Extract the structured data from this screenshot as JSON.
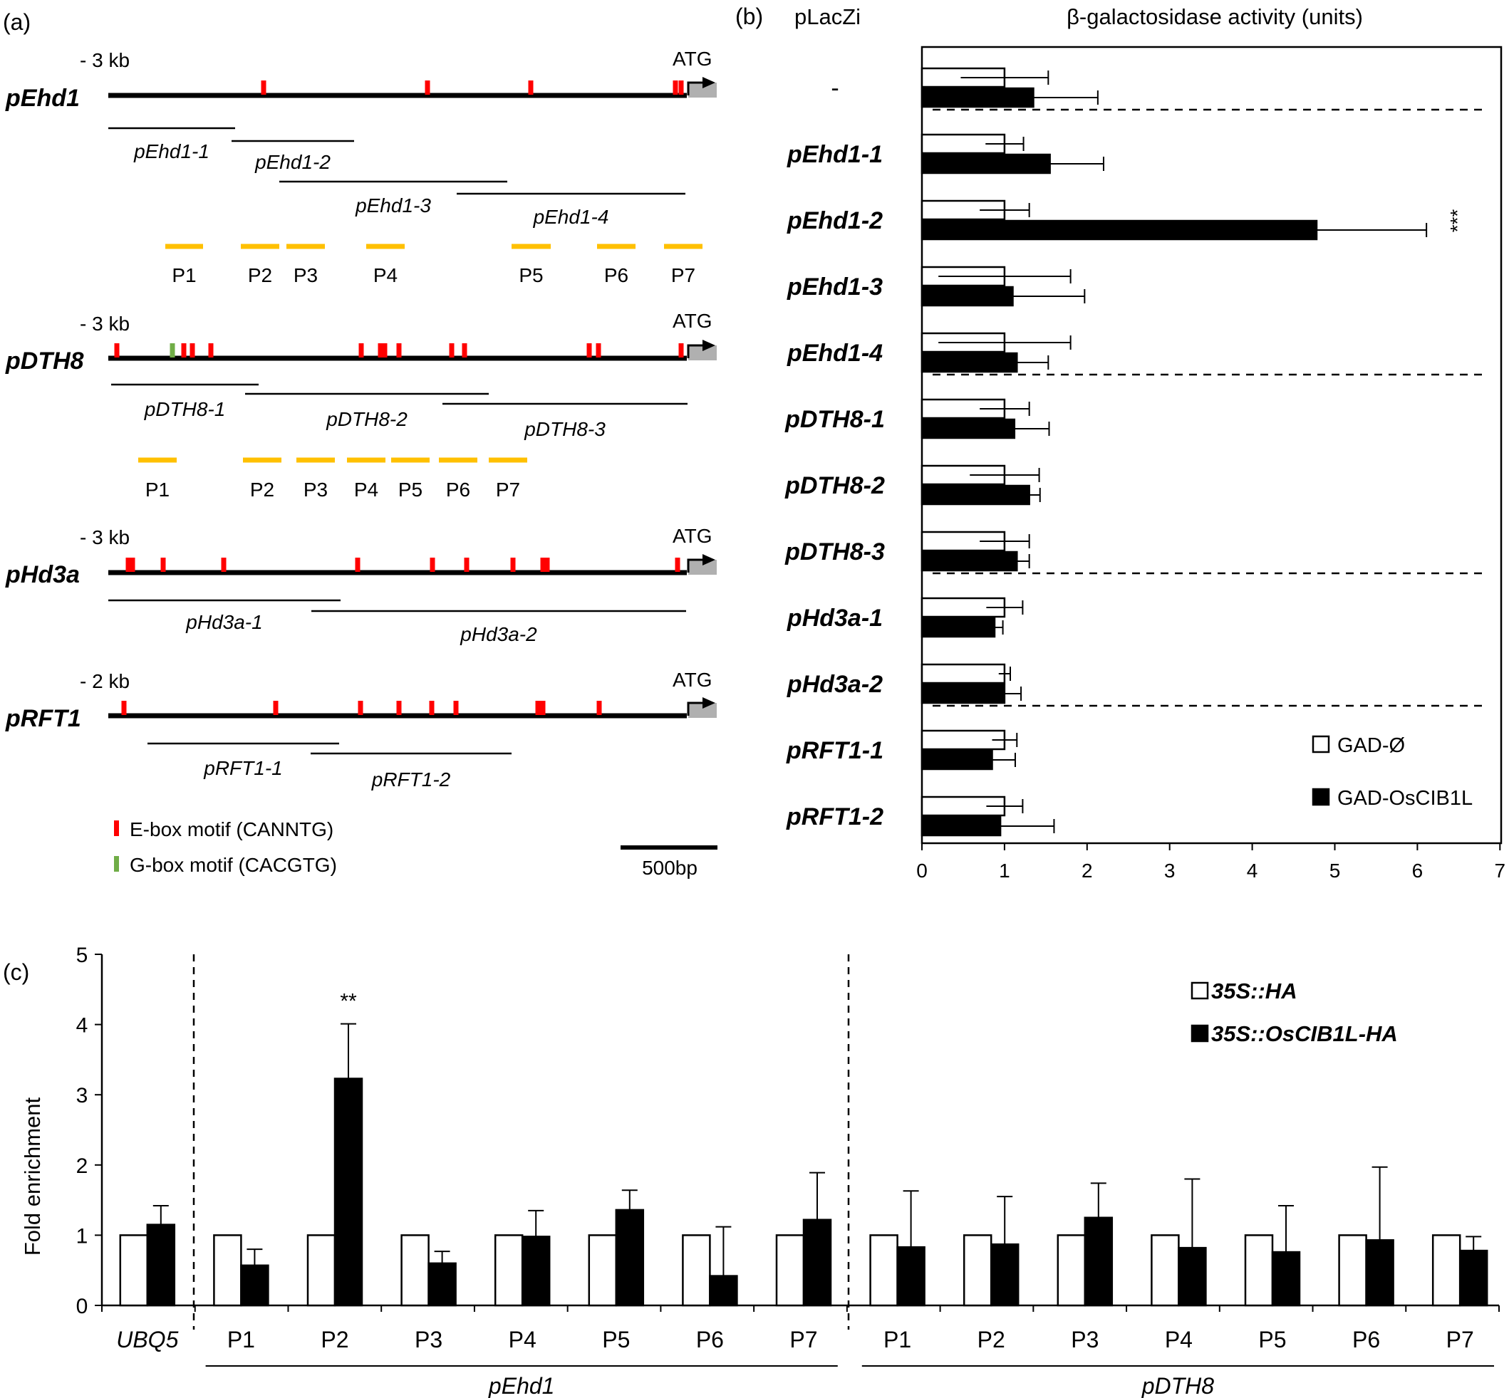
{
  "colors": {
    "black": "#000000",
    "ebox": "#ff0000",
    "gbox": "#70ad47",
    "probe": "#ffc000",
    "exon": "#b0b0b0",
    "white": "#ffffff"
  },
  "panel_a": {
    "label": "(a)",
    "atg_label": "ATG",
    "promoters": [
      {
        "name": "pEhd1",
        "size_label": "- 3 kb",
        "ebox": [
          370,
          600,
          745,
          948,
          956
        ],
        "gbox": [],
        "fragments": [
          {
            "name": "pEhd1-1",
            "from": 152,
            "to": 330
          },
          {
            "name": "pEhd1-2",
            "from": 325,
            "to": 497
          },
          {
            "name": "pEhd1-3",
            "from": 392,
            "to": 712
          },
          {
            "name": "pEhd1-4",
            "from": 641,
            "to": 962
          }
        ],
        "probes": [
          {
            "name": "P1",
            "from": 232,
            "to": 285
          },
          {
            "name": "P2",
            "from": 338,
            "to": 392
          },
          {
            "name": "P3",
            "from": 402,
            "to": 456
          },
          {
            "name": "P4",
            "from": 514,
            "to": 568
          },
          {
            "name": "P5",
            "from": 718,
            "to": 773
          },
          {
            "name": "P6",
            "from": 838,
            "to": 892
          },
          {
            "name": "P7",
            "from": 932,
            "to": 986
          }
        ]
      },
      {
        "name": "pDTH8",
        "size_label": "- 3 kb",
        "ebox": [
          164,
          258,
          270,
          296,
          507,
          534,
          540,
          560,
          634,
          652,
          827,
          840,
          956
        ],
        "gbox": [
          242
        ],
        "fragments": [
          {
            "name": "pDTH8-1",
            "from": 156,
            "to": 363
          },
          {
            "name": "pDTH8-2",
            "from": 344,
            "to": 686
          },
          {
            "name": "pDTH8-3",
            "from": 621,
            "to": 965
          }
        ],
        "probes": [
          {
            "name": "P1",
            "from": 194,
            "to": 248
          },
          {
            "name": "P2",
            "from": 341,
            "to": 395
          },
          {
            "name": "P3",
            "from": 416,
            "to": 470
          },
          {
            "name": "P4",
            "from": 487,
            "to": 541
          },
          {
            "name": "P5",
            "from": 549,
            "to": 603
          },
          {
            "name": "P6",
            "from": 616,
            "to": 670
          },
          {
            "name": "P7",
            "from": 686,
            "to": 740
          }
        ]
      },
      {
        "name": "pHd3a",
        "size_label": "- 3 kb",
        "ebox": [
          180,
          186,
          229,
          314,
          502,
          607,
          655,
          720,
          762,
          768,
          951
        ],
        "gbox": [],
        "fragments": [
          {
            "name": "pHd3a-1",
            "from": 152,
            "to": 478
          },
          {
            "name": "pHd3a-2",
            "from": 437,
            "to": 963
          }
        ],
        "probes": []
      },
      {
        "name": "pRFT1",
        "size_label": "- 2 kb",
        "ebox": [
          174,
          387,
          506,
          560,
          606,
          640,
          755,
          762,
          841
        ],
        "gbox": [],
        "fragments": [
          {
            "name": "pRFT1-1",
            "from": 207,
            "to": 476
          },
          {
            "name": "pRFT1-2",
            "from": 436,
            "to": 718
          }
        ],
        "probes": []
      }
    ],
    "legend": [
      {
        "label": "E-box motif (CANNTG)",
        "kind": "ebox"
      },
      {
        "label": "G-box motif (CACGTG)",
        "kind": "gbox"
      }
    ],
    "scale_label": "500bp"
  },
  "chart_data": [
    {
      "panel": "(b)",
      "type": "bar",
      "orientation": "horizontal",
      "row_header": "pLacZi",
      "title": "β-galactosidase activity (units)",
      "categories": [
        "-",
        "pEhd1-1",
        "pEhd1-2",
        "pEhd1-3",
        "pEhd1-4",
        "pDTH8-1",
        "pDTH8-2",
        "pDTH8-3",
        "pHd3a-1",
        "pHd3a-2",
        "pRFT1-1",
        "pRFT1-2"
      ],
      "group_breaks_after": [
        0,
        4,
        7,
        9,
        11
      ],
      "series": [
        {
          "name": "GAD-Ø",
          "fill": "white",
          "values": [
            1,
            1,
            1,
            1,
            1,
            1,
            1,
            1,
            1,
            1,
            1,
            1
          ],
          "errors": [
            0.53,
            0.23,
            0.3,
            0.8,
            0.8,
            0.3,
            0.42,
            0.3,
            0.22,
            0.07,
            0.15,
            0.22
          ]
        },
        {
          "name": "GAD-OsCIB1L",
          "fill": "black",
          "values": [
            1.35,
            1.55,
            4.78,
            1.1,
            1.15,
            1.12,
            1.3,
            1.15,
            0.88,
            1.0,
            0.85,
            0.95
          ],
          "errors": [
            0.78,
            0.65,
            1.33,
            0.87,
            0.38,
            0.42,
            0.13,
            0.15,
            0.1,
            0.2,
            0.28,
            0.65
          ]
        }
      ],
      "annotations": [
        {
          "category": "pEhd1-2",
          "text": "***"
        }
      ],
      "xlim": [
        0,
        7
      ],
      "xticks": [
        0,
        1,
        2,
        3,
        4,
        5,
        6,
        7
      ],
      "legend_position": "bottom-right"
    },
    {
      "panel": "(c)",
      "type": "bar",
      "ylabel": "Fold enrichment",
      "ylim": [
        0,
        5
      ],
      "yticks": [
        0,
        1,
        2,
        3,
        4,
        5
      ],
      "groups": [
        {
          "label": "",
          "categories": [
            "UBQ5"
          ]
        },
        {
          "label": "pEhd1",
          "categories": [
            "P1",
            "P2",
            "P3",
            "P4",
            "P5",
            "P6",
            "P7"
          ]
        },
        {
          "label": "pDTH8",
          "categories": [
            "P1",
            "P2",
            "P3",
            "P4",
            "P5",
            "P6",
            "P7"
          ]
        }
      ],
      "series": [
        {
          "name": "35S::HA",
          "fill": "white",
          "values": [
            1,
            1,
            1,
            1,
            1,
            1,
            1,
            1,
            1,
            1,
            1,
            1,
            1,
            1,
            1
          ],
          "errors": [
            0,
            0,
            0,
            0,
            0,
            0,
            0,
            0,
            0,
            0,
            0,
            0,
            0,
            0,
            0
          ]
        },
        {
          "name": "35S::OsCIB1L-HA",
          "fill": "black",
          "values": [
            1.15,
            0.57,
            3.23,
            0.6,
            0.98,
            1.36,
            0.42,
            1.22,
            0.83,
            0.87,
            1.25,
            0.82,
            0.76,
            0.93,
            0.78
          ],
          "errors": [
            0.27,
            0.23,
            0.78,
            0.17,
            0.37,
            0.28,
            0.7,
            0.67,
            0.8,
            0.68,
            0.49,
            0.98,
            0.66,
            1.04,
            0.2
          ]
        }
      ],
      "annotations": [
        {
          "index": 2,
          "text": "**"
        }
      ],
      "legend_position": "top-right"
    }
  ]
}
